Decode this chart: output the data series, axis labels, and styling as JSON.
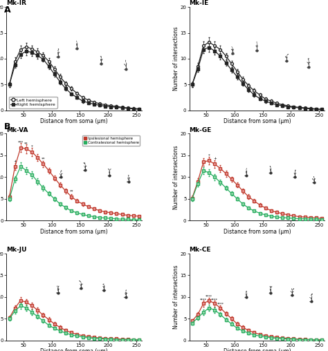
{
  "x": [
    25,
    35,
    45,
    55,
    65,
    75,
    85,
    95,
    105,
    115,
    125,
    135,
    145,
    155,
    165,
    175,
    185,
    195,
    205,
    215,
    225,
    235,
    245,
    255
  ],
  "mk_ir_left": [
    5.0,
    9.5,
    11.8,
    12.3,
    11.9,
    11.3,
    10.6,
    9.5,
    8.0,
    6.5,
    5.2,
    4.2,
    3.3,
    2.5,
    2.0,
    1.6,
    1.3,
    1.1,
    0.9,
    0.8,
    0.6,
    0.5,
    0.4,
    0.3
  ],
  "mk_ir_right": [
    5.0,
    8.8,
    10.8,
    11.5,
    11.2,
    10.6,
    9.9,
    8.5,
    7.0,
    5.5,
    4.2,
    3.2,
    2.5,
    1.8,
    1.5,
    1.2,
    1.0,
    0.8,
    0.7,
    0.6,
    0.5,
    0.4,
    0.3,
    0.2
  ],
  "mk_ir_left_err": [
    0.5,
    0.7,
    0.8,
    0.8,
    0.7,
    0.7,
    0.6,
    0.6,
    0.5,
    0.5,
    0.4,
    0.4,
    0.3,
    0.3,
    0.3,
    0.2,
    0.2,
    0.2,
    0.2,
    0.2,
    0.2,
    0.2,
    0.2,
    0.2
  ],
  "mk_ir_right_err": [
    0.5,
    0.6,
    0.7,
    0.8,
    0.7,
    0.6,
    0.5,
    0.5,
    0.5,
    0.4,
    0.4,
    0.3,
    0.3,
    0.3,
    0.2,
    0.2,
    0.2,
    0.2,
    0.2,
    0.2,
    0.2,
    0.2,
    0.2,
    0.1
  ],
  "mk_ie_left": [
    5.0,
    8.5,
    12.5,
    13.2,
    12.5,
    11.8,
    10.5,
    9.0,
    7.5,
    6.0,
    4.8,
    3.8,
    3.0,
    2.2,
    1.8,
    1.4,
    1.1,
    0.9,
    0.7,
    0.6,
    0.5,
    0.4,
    0.3,
    0.2
  ],
  "mk_ie_right": [
    5.0,
    8.0,
    11.8,
    12.2,
    11.5,
    10.5,
    9.2,
    7.8,
    6.5,
    5.2,
    4.0,
    3.0,
    2.3,
    1.8,
    1.4,
    1.1,
    0.9,
    0.7,
    0.6,
    0.5,
    0.4,
    0.3,
    0.2,
    0.2
  ],
  "mk_ie_left_err": [
    0.5,
    0.7,
    0.9,
    0.9,
    0.8,
    0.7,
    0.6,
    0.6,
    0.5,
    0.5,
    0.4,
    0.4,
    0.3,
    0.3,
    0.3,
    0.2,
    0.2,
    0.2,
    0.2,
    0.2,
    0.2,
    0.2,
    0.2,
    0.2
  ],
  "mk_ie_right_err": [
    0.5,
    0.6,
    0.8,
    0.8,
    0.7,
    0.6,
    0.5,
    0.5,
    0.5,
    0.4,
    0.4,
    0.3,
    0.3,
    0.3,
    0.2,
    0.2,
    0.2,
    0.2,
    0.2,
    0.2,
    0.2,
    0.2,
    0.2,
    0.1
  ],
  "mk_va_ipsi": [
    5.5,
    12.5,
    16.8,
    16.5,
    15.8,
    14.5,
    13.0,
    11.5,
    9.8,
    8.2,
    6.8,
    5.5,
    4.5,
    3.8,
    3.2,
    2.7,
    2.3,
    2.0,
    1.8,
    1.6,
    1.4,
    1.2,
    1.1,
    1.0
  ],
  "mk_va_contra": [
    5.0,
    9.5,
    12.5,
    11.5,
    10.5,
    9.0,
    7.5,
    6.2,
    5.0,
    3.8,
    3.0,
    2.2,
    1.8,
    1.4,
    1.1,
    0.9,
    0.7,
    0.6,
    0.5,
    0.4,
    0.3,
    0.3,
    0.2,
    0.2
  ],
  "mk_va_ipsi_err": [
    0.5,
    0.8,
    1.0,
    1.0,
    0.9,
    0.8,
    0.7,
    0.7,
    0.6,
    0.6,
    0.5,
    0.5,
    0.4,
    0.4,
    0.3,
    0.3,
    0.3,
    0.3,
    0.3,
    0.3,
    0.2,
    0.2,
    0.2,
    0.2
  ],
  "mk_va_contra_err": [
    0.5,
    0.7,
    0.9,
    0.8,
    0.8,
    0.7,
    0.6,
    0.5,
    0.5,
    0.4,
    0.4,
    0.3,
    0.3,
    0.3,
    0.2,
    0.2,
    0.2,
    0.2,
    0.2,
    0.2,
    0.2,
    0.2,
    0.2,
    0.1
  ],
  "mk_ge_ipsi": [
    5.2,
    9.0,
    13.5,
    13.8,
    13.0,
    12.0,
    10.8,
    9.5,
    8.2,
    6.8,
    5.5,
    4.5,
    3.6,
    2.9,
    2.3,
    1.9,
    1.6,
    1.3,
    1.1,
    0.9,
    0.8,
    0.7,
    0.6,
    0.5
  ],
  "mk_ge_contra": [
    5.0,
    8.5,
    11.5,
    11.0,
    10.0,
    8.8,
    7.5,
    6.2,
    5.0,
    3.8,
    2.9,
    2.2,
    1.7,
    1.3,
    1.0,
    0.8,
    0.7,
    0.6,
    0.5,
    0.4,
    0.4,
    0.3,
    0.3,
    0.2
  ],
  "mk_ge_ipsi_err": [
    0.5,
    0.7,
    0.9,
    0.9,
    0.8,
    0.8,
    0.7,
    0.6,
    0.6,
    0.5,
    0.5,
    0.4,
    0.4,
    0.3,
    0.3,
    0.3,
    0.3,
    0.2,
    0.2,
    0.2,
    0.2,
    0.2,
    0.2,
    0.2
  ],
  "mk_ge_contra_err": [
    0.5,
    0.6,
    0.8,
    0.8,
    0.7,
    0.6,
    0.5,
    0.5,
    0.4,
    0.4,
    0.3,
    0.3,
    0.3,
    0.2,
    0.2,
    0.2,
    0.2,
    0.2,
    0.2,
    0.2,
    0.2,
    0.2,
    0.2,
    0.1
  ],
  "mk_ju_ipsi": [
    5.2,
    7.5,
    9.2,
    8.8,
    8.0,
    7.0,
    5.8,
    4.8,
    3.8,
    3.0,
    2.3,
    1.8,
    1.4,
    1.1,
    0.9,
    0.7,
    0.6,
    0.5,
    0.4,
    0.4,
    0.3,
    0.3,
    0.2,
    0.2
  ],
  "mk_ju_contra": [
    5.0,
    6.8,
    8.0,
    7.5,
    6.5,
    5.5,
    4.5,
    3.5,
    2.8,
    2.2,
    1.7,
    1.3,
    1.0,
    0.8,
    0.6,
    0.5,
    0.4,
    0.3,
    0.3,
    0.2,
    0.2,
    0.2,
    0.2,
    0.1
  ],
  "mk_ju_ipsi_err": [
    0.5,
    0.6,
    0.8,
    0.7,
    0.7,
    0.6,
    0.5,
    0.5,
    0.4,
    0.4,
    0.3,
    0.3,
    0.2,
    0.2,
    0.2,
    0.2,
    0.2,
    0.2,
    0.2,
    0.2,
    0.1,
    0.1,
    0.1,
    0.1
  ],
  "mk_ju_contra_err": [
    0.5,
    0.6,
    0.7,
    0.7,
    0.6,
    0.5,
    0.4,
    0.4,
    0.3,
    0.3,
    0.3,
    0.2,
    0.2,
    0.2,
    0.2,
    0.1,
    0.1,
    0.1,
    0.1,
    0.1,
    0.1,
    0.1,
    0.1,
    0.1
  ],
  "mk_ce_ipsi": [
    4.5,
    6.0,
    8.5,
    9.2,
    8.5,
    7.5,
    6.2,
    5.0,
    3.8,
    3.0,
    2.3,
    1.8,
    1.4,
    1.1,
    0.9,
    0.7,
    0.6,
    0.5,
    0.4,
    0.3,
    0.3,
    0.2,
    0.2,
    0.2
  ],
  "mk_ce_contra": [
    4.0,
    5.2,
    6.5,
    7.5,
    7.0,
    6.0,
    4.8,
    3.8,
    2.8,
    2.2,
    1.7,
    1.3,
    1.0,
    0.8,
    0.6,
    0.5,
    0.4,
    0.3,
    0.3,
    0.2,
    0.2,
    0.2,
    0.1,
    0.1
  ],
  "mk_ce_ipsi_err": [
    0.4,
    0.5,
    0.7,
    0.7,
    0.7,
    0.6,
    0.5,
    0.5,
    0.4,
    0.4,
    0.3,
    0.3,
    0.2,
    0.2,
    0.2,
    0.2,
    0.2,
    0.2,
    0.2,
    0.1,
    0.1,
    0.1,
    0.1,
    0.1
  ],
  "mk_ce_contra_err": [
    0.4,
    0.5,
    0.6,
    0.7,
    0.6,
    0.5,
    0.4,
    0.4,
    0.3,
    0.3,
    0.3,
    0.2,
    0.2,
    0.2,
    0.2,
    0.1,
    0.1,
    0.1,
    0.1,
    0.1,
    0.1,
    0.1,
    0.1,
    0.1
  ],
  "color_white": "#ffffff",
  "color_black": "#222222",
  "color_red": "#c0392b",
  "color_green": "#27ae60",
  "color_red_fill": "#e8a0a0",
  "color_green_fill": "#a0d8b0",
  "xlabel": "Distance from soma (μm)",
  "ylabel": "Number of intersections",
  "ylim": [
    0,
    20
  ],
  "yticks": [
    0,
    5,
    10,
    15,
    20
  ],
  "xticks": [
    50,
    100,
    150,
    200,
    250
  ],
  "bg": "#ffffff"
}
